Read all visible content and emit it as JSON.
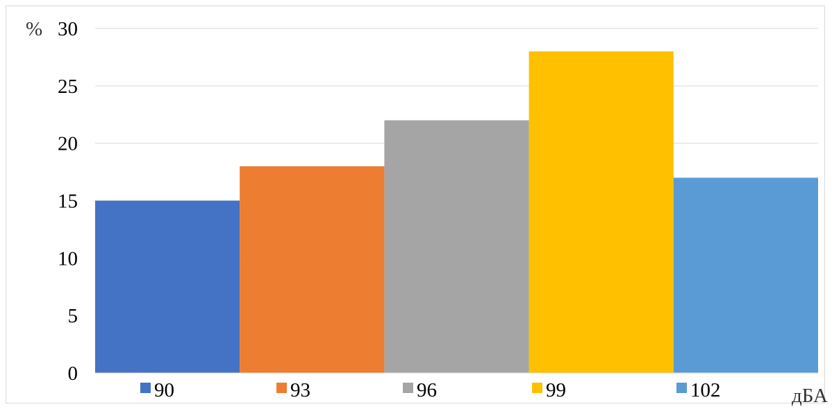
{
  "chart_data": {
    "type": "bar",
    "categories": [
      "90",
      "93",
      "96",
      "99",
      "102"
    ],
    "values": [
      15,
      18,
      22,
      28,
      17
    ],
    "colors": [
      "#4472c4",
      "#ed7d31",
      "#a5a5a5",
      "#ffc000",
      "#5b9bd5"
    ],
    "title": "",
    "xlabel": "дБА",
    "ylabel": "%",
    "ylim": [
      0,
      30
    ],
    "yticks": [
      0,
      5,
      10,
      15,
      20,
      25,
      30
    ],
    "grid": true,
    "legend": {
      "placement": "bottom",
      "entries": [
        "90",
        "93",
        "96",
        "99",
        "102"
      ]
    }
  }
}
